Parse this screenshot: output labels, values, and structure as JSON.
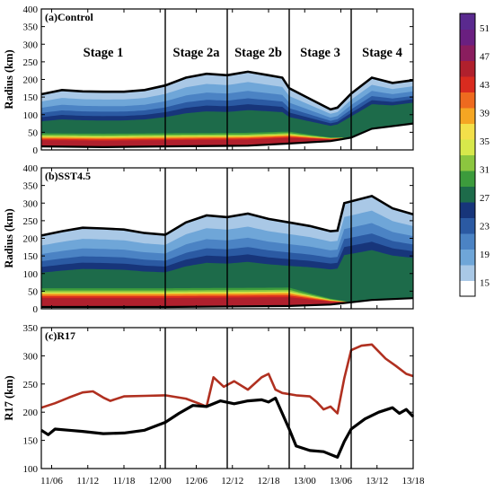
{
  "chart_data": [
    {
      "type": "heatmap",
      "panel_label": "(a)Control",
      "ylabel": "Radius (km)",
      "ylim": [
        0,
        400
      ],
      "y_ticks": [
        0,
        50,
        100,
        150,
        200,
        250,
        300,
        350,
        400
      ],
      "x_tick_labels": [
        "11/06",
        "11/12",
        "11/18",
        "12/00",
        "12/06",
        "12/12",
        "12/18",
        "13/00",
        "13/06",
        "13/12",
        "13/18"
      ],
      "stages": [
        "Stage 1",
        "Stage 2a",
        "Stage 2b",
        "Stage 3",
        "Stage 4"
      ],
      "outer_r17_km": [
        {
          "t": 0,
          "r": 158
        },
        {
          "t": 6,
          "r": 170
        },
        {
          "t": 12,
          "r": 166
        },
        {
          "t": 18,
          "r": 165
        },
        {
          "t": 24,
          "r": 165
        },
        {
          "t": 30,
          "r": 170
        },
        {
          "t": 36,
          "r": 183
        },
        {
          "t": 42,
          "r": 205
        },
        {
          "t": 48,
          "r": 216
        },
        {
          "t": 54,
          "r": 212
        },
        {
          "t": 60,
          "r": 222
        },
        {
          "t": 66,
          "r": 212
        },
        {
          "t": 70,
          "r": 205
        },
        {
          "t": 72,
          "r": 175
        },
        {
          "t": 78,
          "r": 145
        },
        {
          "t": 84,
          "r": 115
        },
        {
          "t": 86,
          "r": 120
        },
        {
          "t": 90,
          "r": 160
        },
        {
          "t": 96,
          "r": 205
        },
        {
          "t": 102,
          "r": 190
        },
        {
          "t": 108,
          "r": 198
        }
      ],
      "inner_r17_km": [
        {
          "t": 0,
          "r": 10
        },
        {
          "t": 18,
          "r": 8
        },
        {
          "t": 36,
          "r": 10
        },
        {
          "t": 60,
          "r": 12
        },
        {
          "t": 72,
          "r": 18
        },
        {
          "t": 84,
          "r": 25
        },
        {
          "t": 90,
          "r": 35
        },
        {
          "t": 96,
          "r": 60
        },
        {
          "t": 108,
          "r": 75
        }
      ]
    },
    {
      "type": "heatmap",
      "panel_label": "(b)SST4.5",
      "ylabel": "Radius (km)",
      "ylim": [
        0,
        400
      ],
      "y_ticks": [
        0,
        50,
        100,
        150,
        200,
        250,
        300,
        350,
        400
      ],
      "x_tick_labels": [
        "11/06",
        "11/12",
        "11/18",
        "12/00",
        "12/06",
        "12/12",
        "12/18",
        "13/00",
        "13/06",
        "13/12",
        "13/18"
      ],
      "outer_r17_km": [
        {
          "t": 0,
          "r": 208
        },
        {
          "t": 6,
          "r": 220
        },
        {
          "t": 12,
          "r": 230
        },
        {
          "t": 18,
          "r": 228
        },
        {
          "t": 24,
          "r": 225
        },
        {
          "t": 30,
          "r": 215
        },
        {
          "t": 36,
          "r": 210
        },
        {
          "t": 42,
          "r": 245
        },
        {
          "t": 48,
          "r": 265
        },
        {
          "t": 54,
          "r": 260
        },
        {
          "t": 60,
          "r": 270
        },
        {
          "t": 66,
          "r": 255
        },
        {
          "t": 72,
          "r": 245
        },
        {
          "t": 78,
          "r": 235
        },
        {
          "t": 84,
          "r": 220
        },
        {
          "t": 86,
          "r": 222
        },
        {
          "t": 88,
          "r": 300
        },
        {
          "t": 96,
          "r": 320
        },
        {
          "t": 102,
          "r": 285
        },
        {
          "t": 108,
          "r": 268
        }
      ],
      "inner_r17_km": [
        {
          "t": 0,
          "r": 5
        },
        {
          "t": 36,
          "r": 5
        },
        {
          "t": 72,
          "r": 8
        },
        {
          "t": 84,
          "r": 12
        },
        {
          "t": 96,
          "r": 25
        },
        {
          "t": 108,
          "r": 30
        }
      ]
    },
    {
      "type": "line",
      "panel_label": "(c)R17",
      "ylabel": "R17 (km)",
      "ylim": [
        100,
        350
      ],
      "y_ticks": [
        100,
        150,
        200,
        250,
        300,
        350
      ],
      "x_tick_labels": [
        "11/06",
        "11/12",
        "11/18",
        "12/00",
        "12/06",
        "12/12",
        "12/18",
        "13/00",
        "13/06",
        "13/12",
        "13/18"
      ],
      "series": [
        {
          "color": "#b03020",
          "points": [
            {
              "t": 0,
              "r": 208
            },
            {
              "t": 4,
              "r": 216
            },
            {
              "t": 8,
              "r": 226
            },
            {
              "t": 12,
              "r": 235
            },
            {
              "t": 15,
              "r": 237
            },
            {
              "t": 18,
              "r": 226
            },
            {
              "t": 20,
              "r": 220
            },
            {
              "t": 24,
              "r": 228
            },
            {
              "t": 30,
              "r": 229
            },
            {
              "t": 36,
              "r": 230
            },
            {
              "t": 42,
              "r": 224
            },
            {
              "t": 46,
              "r": 215
            },
            {
              "t": 48,
              "r": 210
            },
            {
              "t": 50,
              "r": 262
            },
            {
              "t": 53,
              "r": 245
            },
            {
              "t": 56,
              "r": 255
            },
            {
              "t": 60,
              "r": 240
            },
            {
              "t": 64,
              "r": 262
            },
            {
              "t": 66,
              "r": 268
            },
            {
              "t": 68,
              "r": 240
            },
            {
              "t": 70,
              "r": 234
            },
            {
              "t": 74,
              "r": 230
            },
            {
              "t": 78,
              "r": 228
            },
            {
              "t": 80,
              "r": 218
            },
            {
              "t": 82,
              "r": 205
            },
            {
              "t": 84,
              "r": 210
            },
            {
              "t": 86,
              "r": 198
            },
            {
              "t": 88,
              "r": 260
            },
            {
              "t": 90,
              "r": 310
            },
            {
              "t": 93,
              "r": 318
            },
            {
              "t": 96,
              "r": 320
            },
            {
              "t": 100,
              "r": 295
            },
            {
              "t": 103,
              "r": 282
            },
            {
              "t": 106,
              "r": 268
            },
            {
              "t": 108,
              "r": 264
            }
          ]
        },
        {
          "color": "#000000",
          "points": [
            {
              "t": 0,
              "r": 168
            },
            {
              "t": 2,
              "r": 160
            },
            {
              "t": 4,
              "r": 170
            },
            {
              "t": 8,
              "r": 168
            },
            {
              "t": 12,
              "r": 166
            },
            {
              "t": 18,
              "r": 162
            },
            {
              "t": 24,
              "r": 163
            },
            {
              "t": 30,
              "r": 168
            },
            {
              "t": 36,
              "r": 182
            },
            {
              "t": 40,
              "r": 198
            },
            {
              "t": 44,
              "r": 212
            },
            {
              "t": 48,
              "r": 210
            },
            {
              "t": 52,
              "r": 220
            },
            {
              "t": 56,
              "r": 215
            },
            {
              "t": 60,
              "r": 220
            },
            {
              "t": 64,
              "r": 222
            },
            {
              "t": 66,
              "r": 218
            },
            {
              "t": 68,
              "r": 225
            },
            {
              "t": 72,
              "r": 170
            },
            {
              "t": 74,
              "r": 140
            },
            {
              "t": 78,
              "r": 132
            },
            {
              "t": 82,
              "r": 130
            },
            {
              "t": 84,
              "r": 125
            },
            {
              "t": 86,
              "r": 120
            },
            {
              "t": 88,
              "r": 148
            },
            {
              "t": 90,
              "r": 170
            },
            {
              "t": 94,
              "r": 188
            },
            {
              "t": 98,
              "r": 200
            },
            {
              "t": 102,
              "r": 208
            },
            {
              "t": 104,
              "r": 198
            },
            {
              "t": 106,
              "r": 205
            },
            {
              "t": 108,
              "r": 192
            }
          ]
        }
      ]
    }
  ],
  "colorbar": {
    "ticks": [
      "15",
      "19",
      "23",
      "27",
      "31",
      "35",
      "39",
      "43",
      "47",
      "51"
    ],
    "colors": [
      "#ffffff",
      "#a9c8e6",
      "#6fa6d8",
      "#4b83c4",
      "#2b5aa3",
      "#17357a",
      "#1d6b4a",
      "#3c9b3c",
      "#8cc63f",
      "#d7e84b",
      "#f3e04a",
      "#f5a623",
      "#ee6a1f",
      "#d92b1f",
      "#b0202d",
      "#8a1d5e",
      "#6a1f80",
      "#5a2a8f"
    ]
  }
}
